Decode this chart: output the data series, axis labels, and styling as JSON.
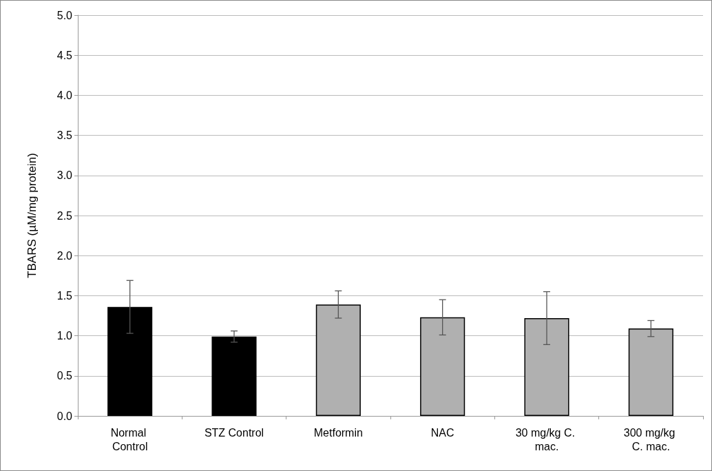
{
  "chart_data": {
    "type": "bar",
    "ylabel": "TBARS (µM/mg protein)",
    "categories": [
      "Normal Control",
      "STZ Control",
      "Metformin",
      "NAC",
      "30 mg/kg C. mac.",
      "300 mg/kg C. mac."
    ],
    "values": [
      1.36,
      0.99,
      1.39,
      1.23,
      1.22,
      1.09
    ],
    "errors": [
      0.33,
      0.07,
      0.17,
      0.22,
      0.33,
      0.1
    ],
    "colors": [
      "#000000",
      "#000000",
      "#b0b0b0",
      "#b0b0b0",
      "#b0b0b0",
      "#b0b0b0"
    ],
    "ylim": [
      0,
      5
    ],
    "yticks": [
      {
        "value": 0,
        "label": "0.0"
      },
      0.5,
      {
        "value": 1,
        "label": "1.0"
      },
      1.5,
      {
        "value": 2,
        "label": "2.0"
      },
      2.5,
      {
        "value": 3,
        "label": "3.0"
      },
      3.5,
      {
        "value": 4,
        "label": "4.0"
      },
      4.5,
      {
        "value": 5,
        "label": "5.0"
      }
    ],
    "grid": "y"
  }
}
